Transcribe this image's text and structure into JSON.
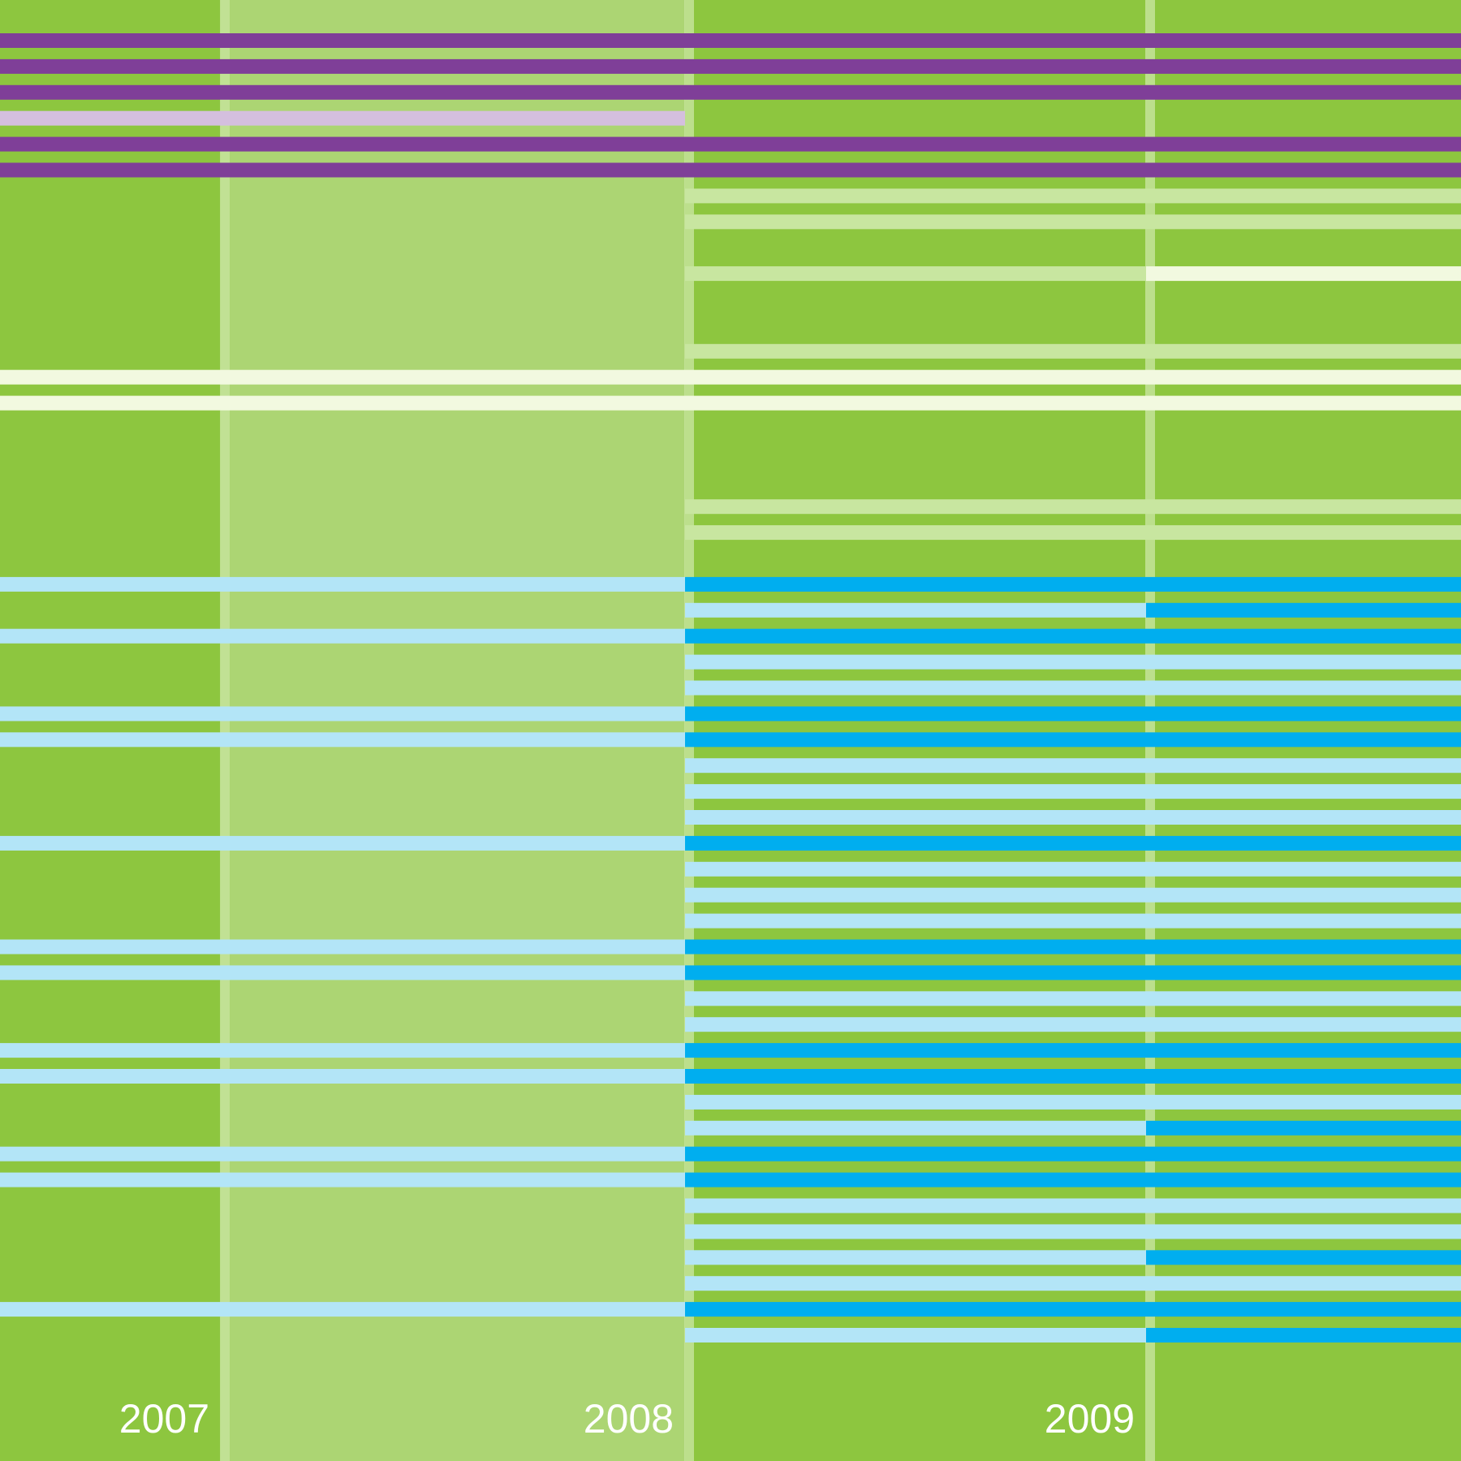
{
  "chart_data": {
    "type": "bar",
    "title": "",
    "xlabel": "",
    "ylabel": "",
    "x_ticks": [
      "2007",
      "2008",
      "2009"
    ],
    "x_range": [
      2006.5,
      2010.2
    ],
    "period_bounds": [
      2006.5,
      2007.0,
      2008.0,
      2009.0,
      2010.2
    ],
    "legend": null,
    "grid": false,
    "colors": {
      "background": "#8dc63f",
      "band_2008": "#acd573",
      "divider": "#c4e39a",
      "label": "#ffffff",
      "purple_strong": "#7f3f98",
      "purple_light": "#d4bfde",
      "white_strong": "#f2f9e0",
      "white_light": "#c8e6a0",
      "blue_strong": "#00aeef",
      "blue_light": "#b3e5f7"
    },
    "rows": [
      {
        "row": 1,
        "segments": [
          {
            "start": 2006.5,
            "end": 2010.2,
            "color": "purple_strong"
          }
        ]
      },
      {
        "row": 2,
        "segments": [
          {
            "start": 2006.5,
            "end": 2010.2,
            "color": "purple_strong"
          }
        ]
      },
      {
        "row": 3,
        "segments": [
          {
            "start": 2006.5,
            "end": 2010.2,
            "color": "purple_strong"
          }
        ]
      },
      {
        "row": 4,
        "segments": [
          {
            "start": 2006.5,
            "end": 2008.0,
            "color": "purple_light"
          }
        ]
      },
      {
        "row": 5,
        "segments": [
          {
            "start": 2006.5,
            "end": 2010.2,
            "color": "purple_strong"
          }
        ]
      },
      {
        "row": 6,
        "segments": [
          {
            "start": 2006.5,
            "end": 2010.2,
            "color": "purple_strong"
          }
        ]
      },
      {
        "row": 7,
        "segments": [
          {
            "start": 2008.0,
            "end": 2010.2,
            "color": "white_light"
          }
        ]
      },
      {
        "row": 8,
        "segments": [
          {
            "start": 2008.0,
            "end": 2010.2,
            "color": "white_light"
          }
        ]
      },
      {
        "row": 10,
        "segments": [
          {
            "start": 2008.0,
            "end": 2009.0,
            "color": "white_light"
          },
          {
            "start": 2009.0,
            "end": 2010.2,
            "color": "white_strong"
          }
        ]
      },
      {
        "row": 13,
        "segments": [
          {
            "start": 2008.0,
            "end": 2010.2,
            "color": "white_light"
          }
        ]
      },
      {
        "row": 14,
        "segments": [
          {
            "start": 2006.5,
            "end": 2010.2,
            "color": "white_strong"
          }
        ]
      },
      {
        "row": 15,
        "segments": [
          {
            "start": 2006.5,
            "end": 2010.2,
            "color": "white_strong"
          }
        ]
      },
      {
        "row": 19,
        "segments": [
          {
            "start": 2008.0,
            "end": 2010.2,
            "color": "white_light"
          }
        ]
      },
      {
        "row": 20,
        "segments": [
          {
            "start": 2008.0,
            "end": 2010.2,
            "color": "white_light"
          }
        ]
      },
      {
        "row": 22,
        "segments": [
          {
            "start": 2006.5,
            "end": 2008.0,
            "color": "blue_light"
          },
          {
            "start": 2008.0,
            "end": 2010.2,
            "color": "blue_strong"
          }
        ]
      },
      {
        "row": 23,
        "segments": [
          {
            "start": 2008.0,
            "end": 2009.0,
            "color": "blue_light"
          },
          {
            "start": 2009.0,
            "end": 2010.2,
            "color": "blue_strong"
          }
        ]
      },
      {
        "row": 24,
        "segments": [
          {
            "start": 2006.5,
            "end": 2008.0,
            "color": "blue_light"
          },
          {
            "start": 2008.0,
            "end": 2010.2,
            "color": "blue_strong"
          }
        ]
      },
      {
        "row": 25,
        "segments": [
          {
            "start": 2008.0,
            "end": 2010.2,
            "color": "blue_light"
          }
        ]
      },
      {
        "row": 26,
        "segments": [
          {
            "start": 2008.0,
            "end": 2010.2,
            "color": "blue_light"
          }
        ]
      },
      {
        "row": 27,
        "segments": [
          {
            "start": 2006.5,
            "end": 2008.0,
            "color": "blue_light"
          },
          {
            "start": 2008.0,
            "end": 2010.2,
            "color": "blue_strong"
          }
        ]
      },
      {
        "row": 28,
        "segments": [
          {
            "start": 2006.5,
            "end": 2008.0,
            "color": "blue_light"
          },
          {
            "start": 2008.0,
            "end": 2010.2,
            "color": "blue_strong"
          }
        ]
      },
      {
        "row": 29,
        "segments": [
          {
            "start": 2008.0,
            "end": 2010.2,
            "color": "blue_light"
          }
        ]
      },
      {
        "row": 30,
        "segments": [
          {
            "start": 2008.0,
            "end": 2010.2,
            "color": "blue_light"
          }
        ]
      },
      {
        "row": 31,
        "segments": [
          {
            "start": 2008.0,
            "end": 2010.2,
            "color": "blue_light"
          }
        ]
      },
      {
        "row": 32,
        "segments": [
          {
            "start": 2006.5,
            "end": 2008.0,
            "color": "blue_light"
          },
          {
            "start": 2008.0,
            "end": 2010.2,
            "color": "blue_strong"
          }
        ]
      },
      {
        "row": 33,
        "segments": [
          {
            "start": 2008.0,
            "end": 2010.2,
            "color": "blue_light"
          }
        ]
      },
      {
        "row": 34,
        "segments": [
          {
            "start": 2008.0,
            "end": 2010.2,
            "color": "blue_light"
          }
        ]
      },
      {
        "row": 35,
        "segments": [
          {
            "start": 2008.0,
            "end": 2010.2,
            "color": "blue_light"
          }
        ]
      },
      {
        "row": 36,
        "segments": [
          {
            "start": 2006.5,
            "end": 2008.0,
            "color": "blue_light"
          },
          {
            "start": 2008.0,
            "end": 2010.2,
            "color": "blue_strong"
          }
        ]
      },
      {
        "row": 37,
        "segments": [
          {
            "start": 2006.5,
            "end": 2008.0,
            "color": "blue_light"
          },
          {
            "start": 2008.0,
            "end": 2010.2,
            "color": "blue_strong"
          }
        ]
      },
      {
        "row": 38,
        "segments": [
          {
            "start": 2008.0,
            "end": 2010.2,
            "color": "blue_light"
          }
        ]
      },
      {
        "row": 39,
        "segments": [
          {
            "start": 2008.0,
            "end": 2010.2,
            "color": "blue_light"
          }
        ]
      },
      {
        "row": 40,
        "segments": [
          {
            "start": 2006.5,
            "end": 2008.0,
            "color": "blue_light"
          },
          {
            "start": 2008.0,
            "end": 2010.2,
            "color": "blue_strong"
          }
        ]
      },
      {
        "row": 41,
        "segments": [
          {
            "start": 2006.5,
            "end": 2008.0,
            "color": "blue_light"
          },
          {
            "start": 2008.0,
            "end": 2010.2,
            "color": "blue_strong"
          }
        ]
      },
      {
        "row": 42,
        "segments": [
          {
            "start": 2008.0,
            "end": 2010.2,
            "color": "blue_light"
          }
        ]
      },
      {
        "row": 43,
        "segments": [
          {
            "start": 2008.0,
            "end": 2009.0,
            "color": "blue_light"
          },
          {
            "start": 2009.0,
            "end": 2010.2,
            "color": "blue_strong"
          }
        ]
      },
      {
        "row": 44,
        "segments": [
          {
            "start": 2006.5,
            "end": 2008.0,
            "color": "blue_light"
          },
          {
            "start": 2008.0,
            "end": 2010.2,
            "color": "blue_strong"
          }
        ]
      },
      {
        "row": 45,
        "segments": [
          {
            "start": 2006.5,
            "end": 2008.0,
            "color": "blue_light"
          },
          {
            "start": 2008.0,
            "end": 2010.2,
            "color": "blue_strong"
          }
        ]
      },
      {
        "row": 46,
        "segments": [
          {
            "start": 2008.0,
            "end": 2010.2,
            "color": "blue_light"
          }
        ]
      },
      {
        "row": 47,
        "segments": [
          {
            "start": 2008.0,
            "end": 2010.2,
            "color": "blue_light"
          }
        ]
      },
      {
        "row": 48,
        "segments": [
          {
            "start": 2008.0,
            "end": 2009.0,
            "color": "blue_light"
          },
          {
            "start": 2009.0,
            "end": 2010.2,
            "color": "blue_strong"
          }
        ]
      },
      {
        "row": 49,
        "segments": [
          {
            "start": 2008.0,
            "end": 2010.2,
            "color": "blue_light"
          }
        ]
      },
      {
        "row": 50,
        "segments": [
          {
            "start": 2006.5,
            "end": 2008.0,
            "color": "blue_light"
          },
          {
            "start": 2008.0,
            "end": 2010.2,
            "color": "blue_strong"
          }
        ]
      },
      {
        "row": 51,
        "segments": [
          {
            "start": 2008.0,
            "end": 2009.0,
            "color": "blue_light"
          },
          {
            "start": 2009.0,
            "end": 2010.2,
            "color": "blue_strong"
          }
        ]
      }
    ]
  }
}
